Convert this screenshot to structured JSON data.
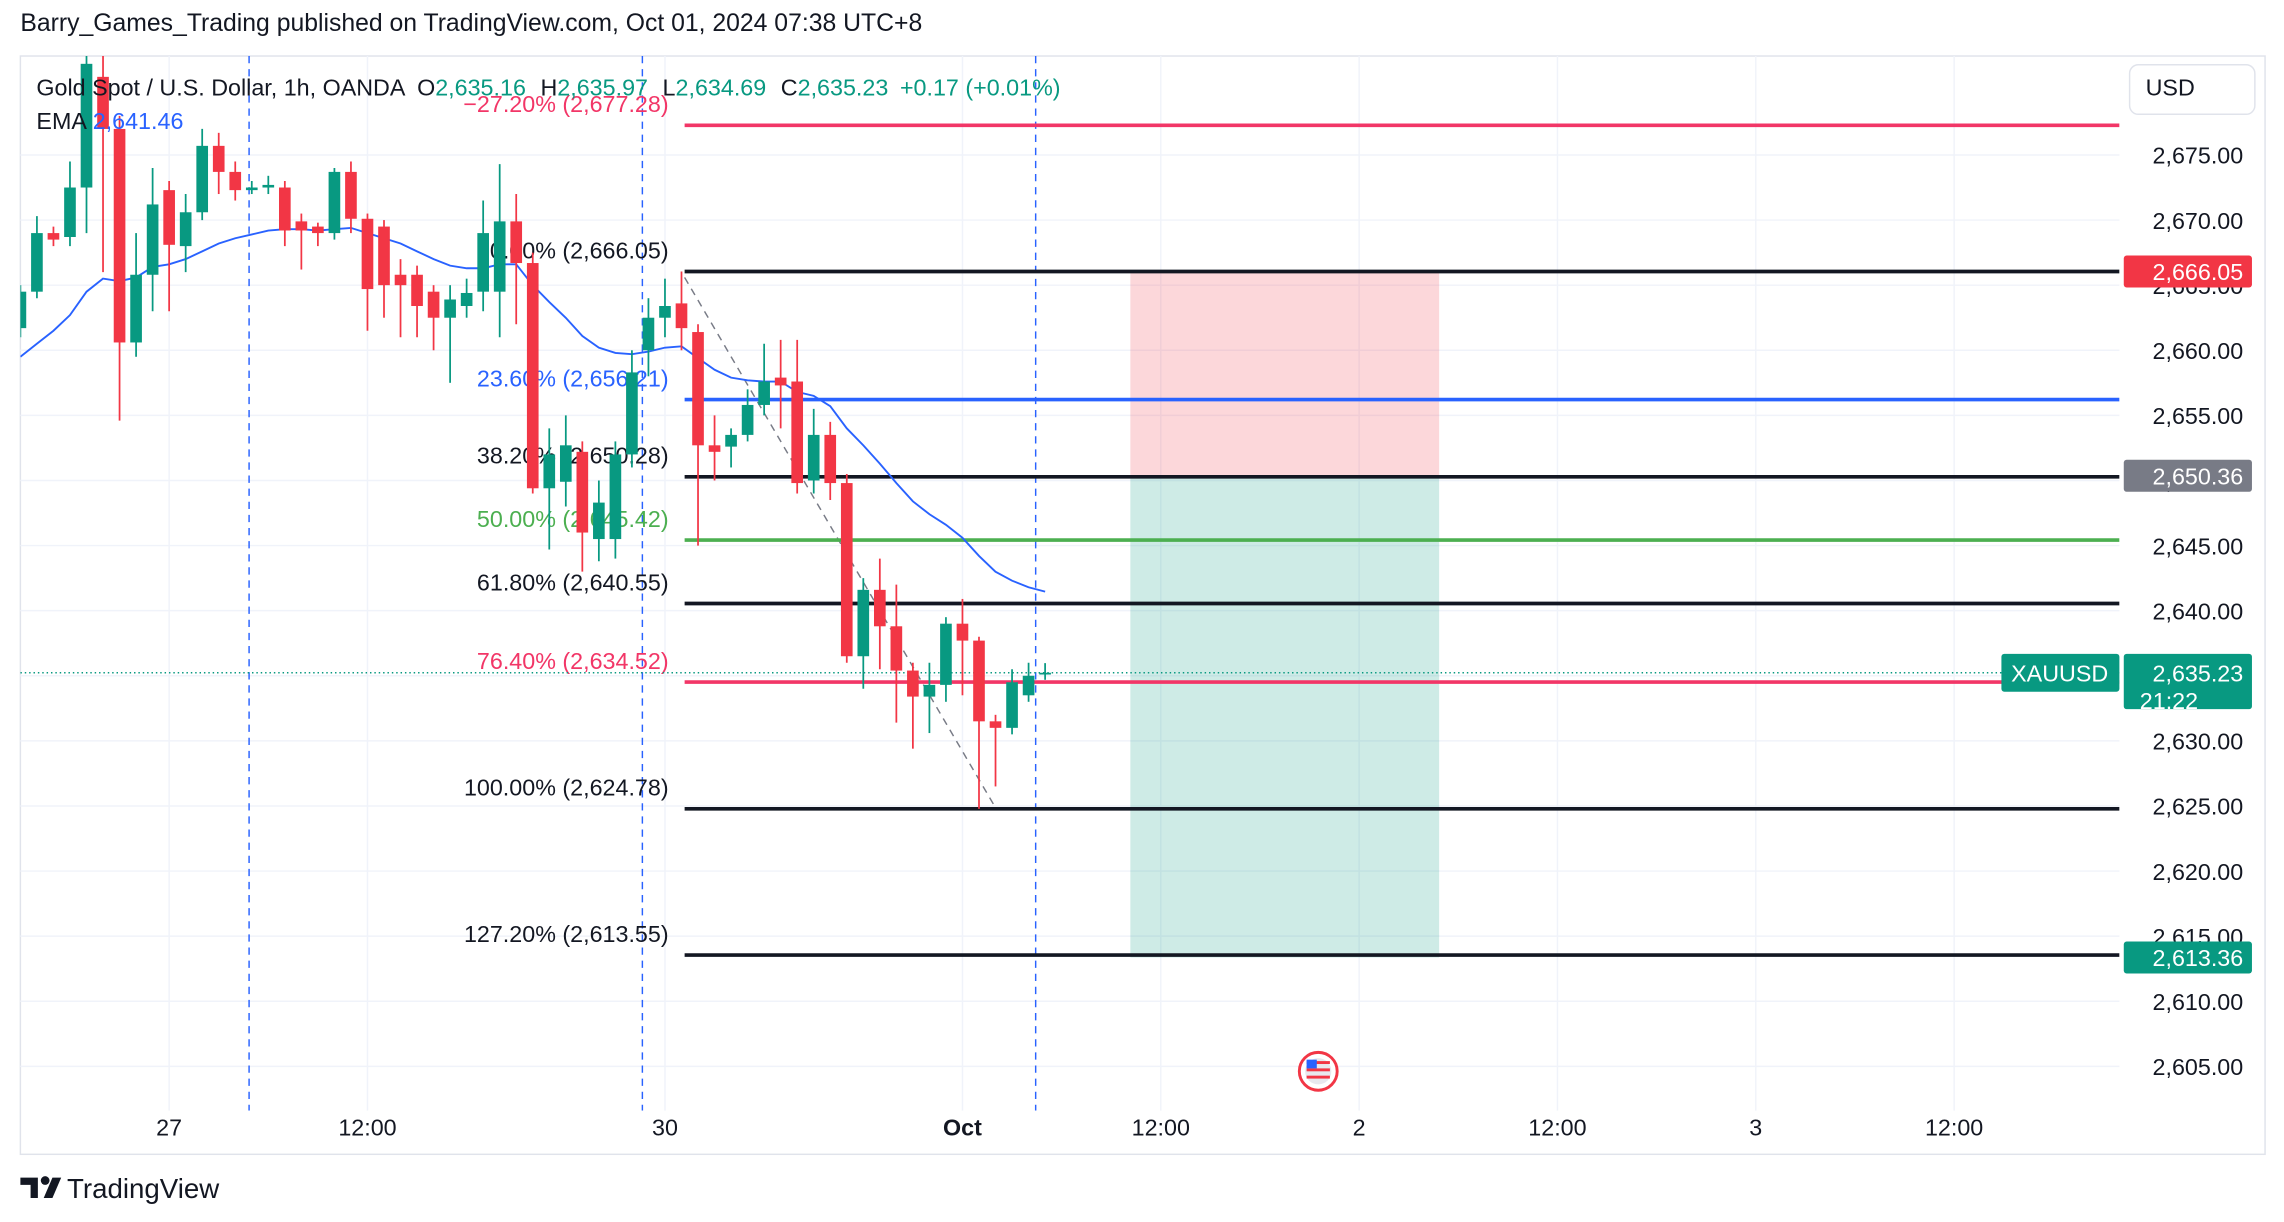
{
  "header": {
    "published": "Barry_Games_Trading published on TradingView.com, Oct 01, 2024 07:38 UTC+8"
  },
  "footer": {
    "brand": "TradingView"
  },
  "chart_data": {
    "type": "candlestick",
    "legend": {
      "symbol": "Gold Spot / U.S. Dollar, 1h, OANDA",
      "ohlc": [
        {
          "key": "O",
          "value": "2,635.16"
        },
        {
          "key": "H",
          "value": "2,635.97"
        },
        {
          "key": "L",
          "value": "2,634.69"
        },
        {
          "key": "C",
          "value": "2,635.23"
        }
      ],
      "change": "+0.17 (+0.01%)"
    },
    "currency": "USD",
    "up_color": "#089981",
    "down_color": "#f23645",
    "grid": true,
    "xlim": [
      -9,
      118
    ],
    "xticks": [
      {
        "value": 0,
        "label": "27"
      },
      {
        "value": 12,
        "label": "12:00"
      },
      {
        "value": 30,
        "label": "30"
      },
      {
        "value": 48,
        "label": "Oct"
      },
      {
        "value": 60,
        "label": "12:00"
      },
      {
        "value": 72,
        "label": "2"
      },
      {
        "value": 84,
        "label": "12:00"
      },
      {
        "value": 96,
        "label": "3"
      },
      {
        "value": 108,
        "label": "12:00"
      }
    ],
    "ylim": [
      2601.6,
      2682.6
    ],
    "yticks": [
      {
        "value": 2605,
        "label": "2,605.00"
      },
      {
        "value": 2610,
        "label": "2,610.00"
      },
      {
        "value": 2615,
        "label": "2,615.00"
      },
      {
        "value": 2620,
        "label": "2,620.00"
      },
      {
        "value": 2625,
        "label": "2,625.00"
      },
      {
        "value": 2630,
        "label": "2,630.00"
      },
      {
        "value": 2635,
        "label": "2,635.00"
      },
      {
        "value": 2640,
        "label": "2,640.00"
      },
      {
        "value": 2645,
        "label": "2,645.00"
      },
      {
        "value": 2650,
        "label": "2,650.00"
      },
      {
        "value": 2655,
        "label": "2,655.00"
      },
      {
        "value": 2660,
        "label": "2,660.00"
      },
      {
        "value": 2665,
        "label": "2,665.00"
      },
      {
        "value": 2670,
        "label": "2,670.00"
      },
      {
        "value": 2675,
        "label": "2,675.00"
      }
    ],
    "x": [
      -9,
      -8,
      -7,
      -6,
      -5,
      -4,
      -3,
      -2,
      -1,
      0,
      1,
      2,
      3,
      4,
      5,
      6,
      7,
      8,
      9,
      10,
      11,
      12,
      13,
      14,
      15,
      16,
      17,
      18,
      19,
      20,
      21,
      22,
      23,
      24,
      25,
      26,
      27,
      28,
      29,
      30,
      31,
      32,
      33,
      34,
      35,
      36,
      37,
      38,
      39,
      40,
      41,
      42,
      43,
      44,
      45,
      46,
      47,
      48,
      49,
      50,
      51,
      52,
      53
    ],
    "open": [
      2661.7,
      2664.5,
      2669,
      2668.7,
      2672.5,
      2681,
      2677,
      2660.6,
      2665.8,
      2672.3,
      2668,
      2670.6,
      2675.7,
      2673.7,
      2672.3,
      2672.5,
      2672.5,
      2669.9,
      2669.5,
      2669,
      2673.7,
      2670.1,
      2669.5,
      2665.8,
      2665.8,
      2664.5,
      2662.5,
      2663.4,
      2664.5,
      2664.5,
      2669.9,
      2666.7,
      2649.4,
      2649.9,
      2652.2,
      2645.5,
      2645.5,
      2652,
      2660,
      2662.5,
      2663.6,
      2661.4,
      2652.7,
      2652.6,
      2653.5,
      2655.8,
      2657.9,
      2657.6,
      2650,
      2653.5,
      2649.8,
      2636.5,
      2641.6,
      2638.8,
      2635.4,
      2633.4,
      2634.3,
      2639,
      2637.7,
      2631.5,
      2631,
      2633.5,
      2635.16
    ],
    "high": [
      2665,
      2670.3,
      2669.5,
      2674.5,
      2683,
      2683,
      2678,
      2669,
      2674,
      2673,
      2672,
      2677,
      2676.7,
      2674.5,
      2673,
      2673.4,
      2673,
      2670.5,
      2669.8,
      2674,
      2674.5,
      2670.5,
      2670,
      2667,
      2666.5,
      2665,
      2665,
      2665.5,
      2671.5,
      2674.3,
      2672,
      2667.5,
      2654,
      2655,
      2653,
      2650,
      2653,
      2660,
      2664,
      2665.5,
      2666.05,
      2662,
      2655,
      2654,
      2657,
      2660.5,
      2660.8,
      2660.8,
      2655.5,
      2654.5,
      2650.5,
      2642.5,
      2644,
      2642,
      2636,
      2636,
      2639.5,
      2640.9,
      2638,
      2632,
      2635.5,
      2636,
      2635.97
    ],
    "low": [
      2661,
      2664,
      2668,
      2668,
      2669,
      2666,
      2654.6,
      2659.5,
      2663,
      2663,
      2666,
      2670,
      2672,
      2671.5,
      2672,
      2672,
      2668,
      2666.2,
      2668,
      2668.5,
      2669,
      2661.5,
      2662.5,
      2661,
      2661,
      2660,
      2657.5,
      2662.5,
      2663,
      2661,
      2662,
      2649,
      2644.7,
      2648,
      2643,
      2643.8,
      2644,
      2651,
      2658,
      2661,
      2660,
      2645,
      2650,
      2651,
      2653,
      2655,
      2654,
      2649,
      2649,
      2648.5,
      2636,
      2634,
      2635.5,
      2631.4,
      2629.4,
      2630.6,
      2633,
      2633.5,
      2624.78,
      2626.5,
      2630.5,
      2633,
      2634.69
    ],
    "close": [
      2664.5,
      2669,
      2668.5,
      2672.5,
      2682,
      2677,
      2660.6,
      2665.8,
      2671.2,
      2668.1,
      2670.6,
      2675.7,
      2673.7,
      2672.3,
      2672.5,
      2672.7,
      2669.2,
      2669.2,
      2669,
      2673.7,
      2670.1,
      2664.7,
      2665,
      2665,
      2663.4,
      2662.5,
      2663.9,
      2664.4,
      2669,
      2669.9,
      2666.7,
      2649.4,
      2652,
      2652.7,
      2646,
      2648.3,
      2652,
      2658.3,
      2662.5,
      2663.4,
      2661.7,
      2652.7,
      2652.2,
      2653.5,
      2655.8,
      2657.6,
      2657.3,
      2649.8,
      2653.5,
      2649.8,
      2636.5,
      2641.6,
      2638.8,
      2635.4,
      2633.4,
      2634.3,
      2639,
      2637.7,
      2631.5,
      2631,
      2634.5,
      2635,
      2635.23
    ],
    "ema": {
      "name": "EMA",
      "value_label": "2,641.46",
      "color": "#2962ff",
      "values": [
        2659.5,
        2660.5,
        2661.5,
        2662.7,
        2664.5,
        2665.5,
        2665.3,
        2665.6,
        2666.4,
        2666.6,
        2667,
        2667.6,
        2668.2,
        2668.6,
        2668.9,
        2669.2,
        2669.3,
        2669.3,
        2669.2,
        2669.3,
        2669.4,
        2669,
        2668.6,
        2668.2,
        2667.6,
        2667,
        2666.5,
        2666.3,
        2666.3,
        2666.6,
        2666.6,
        2665,
        2663.7,
        2662.5,
        2661.1,
        2660.2,
        2659.8,
        2659.7,
        2659.9,
        2660.2,
        2660.3,
        2659.4,
        2658.5,
        2657.9,
        2657.7,
        2657.6,
        2657.6,
        2656.8,
        2656.5,
        2655.7,
        2654,
        2652.7,
        2651.3,
        2649.8,
        2648.4,
        2647.4,
        2646.6,
        2645.6,
        2644.2,
        2643,
        2642.3,
        2641.8,
        2641.46
      ]
    },
    "fib_levels": [
      {
        "text": "−27.20% (2,677.28)",
        "value": 2677.28,
        "color": "#f23667"
      },
      {
        "text": "0.00% (2,666.05)",
        "value": 2666.05,
        "color": "#131722"
      },
      {
        "text": "23.60% (2,656.21)",
        "value": 2656.21,
        "color": "#2962ff"
      },
      {
        "text": "38.20% (2,650.28)",
        "value": 2650.28,
        "color": "#131722"
      },
      {
        "text": "50.00% (2,645.42)",
        "value": 2645.42,
        "color": "#4caf50"
      },
      {
        "text": "61.80% (2,640.55)",
        "value": 2640.55,
        "color": "#131722"
      },
      {
        "text": "76.40% (2,634.52)",
        "value": 2634.52,
        "color": "#f23667"
      },
      {
        "text": "100.00% (2,624.78)",
        "value": 2624.78,
        "color": "#131722"
      },
      {
        "text": "127.20% (2,613.55)",
        "value": 2613.55,
        "color": "#131722"
      }
    ],
    "position": {
      "stop": 2666.05,
      "stop_label": "2,666.05",
      "stop_color": "#f23645",
      "entry": 2650.36,
      "entry_label": "2,650.36",
      "entry_color": "#787b86",
      "target": 2613.36,
      "target_label": "2,613.36",
      "target_color": "#089981"
    },
    "last_price": {
      "value": 2635.23,
      "label": "2,635.23",
      "symbol": "XAUUSD",
      "countdown": "21:22",
      "color": "#089981"
    }
  }
}
